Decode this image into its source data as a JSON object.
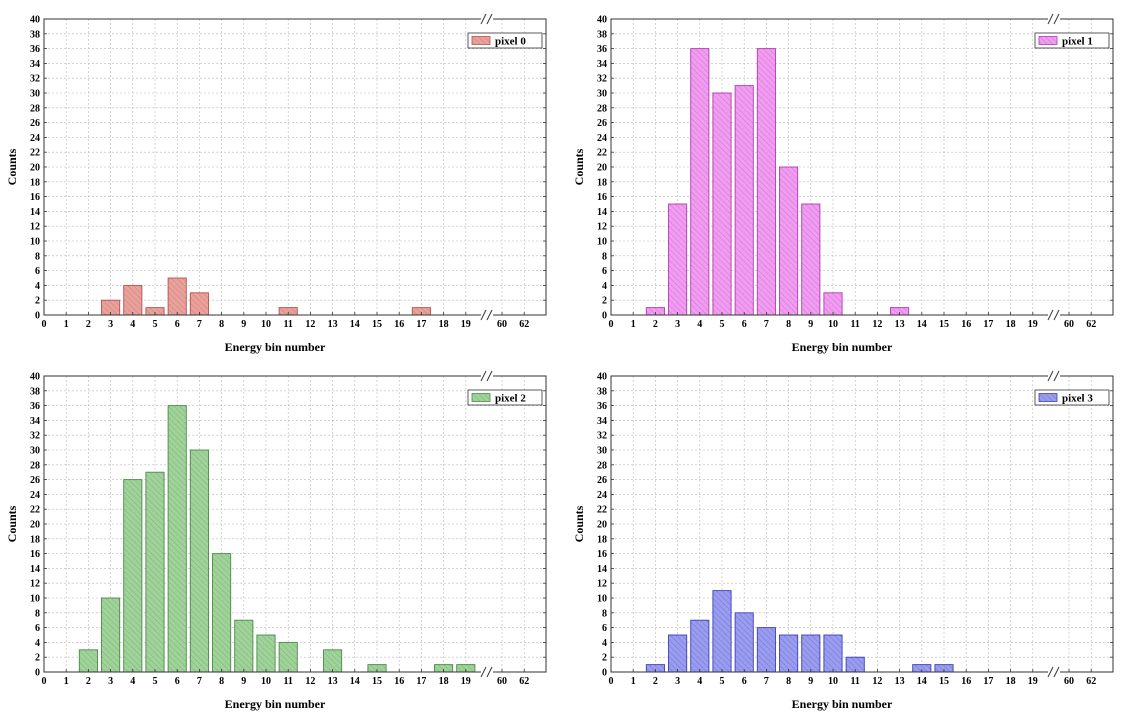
{
  "chart_data": [
    {
      "type": "bar",
      "xlabel": "Energy bin number",
      "ylabel": "Counts",
      "ylim": [
        0,
        40
      ],
      "yticks": [
        0,
        2,
        4,
        6,
        8,
        10,
        12,
        14,
        16,
        18,
        20,
        22,
        24,
        26,
        28,
        30,
        32,
        34,
        36,
        38,
        40
      ],
      "xticks": [
        "0",
        "1",
        "2",
        "3",
        "4",
        "5",
        "6",
        "7",
        "8",
        "9",
        "10",
        "11",
        "12",
        "13",
        "14",
        "15",
        "16",
        "17",
        "18",
        "19",
        "60",
        "62"
      ],
      "axis_break": "between 19 and 60",
      "grid": true,
      "legend_position": "top-right",
      "series": [
        {
          "name": "pixel 0",
          "color": "#e8a19b",
          "edge": "#b5544c",
          "x": [
            3,
            4,
            5,
            6,
            7,
            11,
            17
          ],
          "values": [
            2,
            4,
            1,
            5,
            3,
            1,
            1
          ]
        }
      ]
    },
    {
      "type": "bar",
      "xlabel": "Energy bin number",
      "ylabel": "Counts",
      "ylim": [
        0,
        40
      ],
      "yticks": [
        0,
        2,
        4,
        6,
        8,
        10,
        12,
        14,
        16,
        18,
        20,
        22,
        24,
        26,
        28,
        30,
        32,
        34,
        36,
        38,
        40
      ],
      "xticks": [
        "0",
        "1",
        "2",
        "3",
        "4",
        "5",
        "6",
        "7",
        "8",
        "9",
        "10",
        "11",
        "12",
        "13",
        "14",
        "15",
        "16",
        "17",
        "18",
        "19",
        "60",
        "62"
      ],
      "axis_break": "between 19 and 60",
      "grid": true,
      "legend_position": "top-right",
      "series": [
        {
          "name": "pixel 1",
          "color": "#f09cf0",
          "edge": "#b13cb1",
          "x": [
            2,
            3,
            4,
            5,
            6,
            7,
            8,
            9,
            10,
            13
          ],
          "values": [
            1,
            15,
            36,
            30,
            31,
            36,
            20,
            15,
            3,
            1
          ]
        }
      ]
    },
    {
      "type": "bar",
      "xlabel": "Energy bin number",
      "ylabel": "Counts",
      "ylim": [
        0,
        40
      ],
      "yticks": [
        0,
        2,
        4,
        6,
        8,
        10,
        12,
        14,
        16,
        18,
        20,
        22,
        24,
        26,
        28,
        30,
        32,
        34,
        36,
        38,
        40
      ],
      "xticks": [
        "0",
        "1",
        "2",
        "3",
        "4",
        "5",
        "6",
        "7",
        "8",
        "9",
        "10",
        "11",
        "12",
        "13",
        "14",
        "15",
        "16",
        "17",
        "18",
        "19",
        "60",
        "62"
      ],
      "axis_break": "between 19 and 60",
      "grid": true,
      "legend_position": "top-right",
      "series": [
        {
          "name": "pixel 2",
          "color": "#9fd39a",
          "edge": "#4e8a48",
          "x": [
            2,
            3,
            4,
            5,
            6,
            7,
            8,
            9,
            10,
            11,
            13,
            15,
            18,
            19
          ],
          "values": [
            3,
            10,
            26,
            27,
            36,
            30,
            16,
            7,
            5,
            4,
            3,
            1,
            1,
            1
          ]
        }
      ]
    },
    {
      "type": "bar",
      "xlabel": "Energy bin number",
      "ylabel": "Counts",
      "ylim": [
        0,
        40
      ],
      "yticks": [
        0,
        2,
        4,
        6,
        8,
        10,
        12,
        14,
        16,
        18,
        20,
        22,
        24,
        26,
        28,
        30,
        32,
        34,
        36,
        38,
        40
      ],
      "xticks": [
        "0",
        "1",
        "2",
        "3",
        "4",
        "5",
        "6",
        "7",
        "8",
        "9",
        "10",
        "11",
        "12",
        "13",
        "14",
        "15",
        "16",
        "17",
        "18",
        "19",
        "60",
        "62"
      ],
      "axis_break": "between 19 and 60",
      "grid": true,
      "legend_position": "top-right",
      "series": [
        {
          "name": "pixel 3",
          "color": "#9a9cf0",
          "edge": "#3f41b0",
          "x": [
            2,
            3,
            4,
            5,
            6,
            7,
            8,
            9,
            10,
            11,
            14,
            15
          ],
          "values": [
            1,
            5,
            7,
            11,
            8,
            6,
            5,
            5,
            5,
            2,
            1,
            1
          ]
        }
      ]
    }
  ]
}
